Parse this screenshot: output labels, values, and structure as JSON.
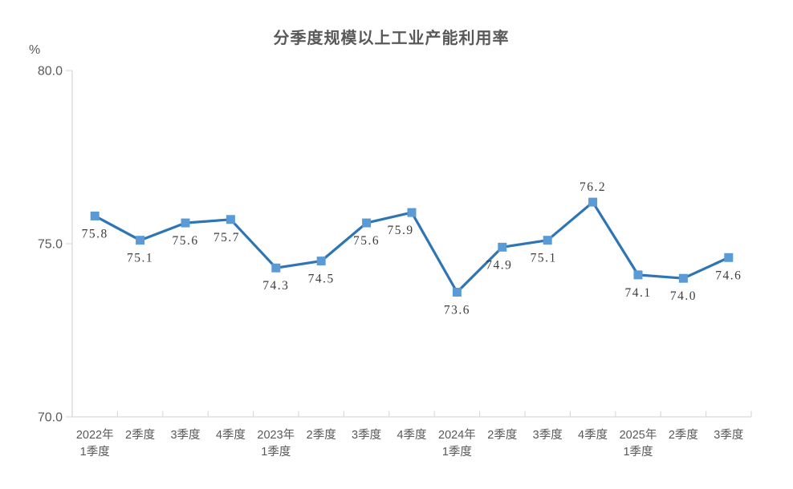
{
  "chart_data": {
    "type": "line",
    "title": "分季度规模以上工业产能利用率",
    "ylabel": "%",
    "categories": [
      [
        "2022年",
        "1季度"
      ],
      [
        "2季度"
      ],
      [
        "3季度"
      ],
      [
        "4季度"
      ],
      [
        "2023年",
        "1季度"
      ],
      [
        "2季度"
      ],
      [
        "3季度"
      ],
      [
        "4季度"
      ],
      [
        "2024年",
        "1季度"
      ],
      [
        "2季度"
      ],
      [
        "3季度"
      ],
      [
        "4季度"
      ],
      [
        "2025年",
        "1季度"
      ],
      [
        "2季度"
      ],
      [
        "3季度"
      ]
    ],
    "values": [
      75.8,
      75.1,
      75.6,
      75.7,
      74.3,
      74.5,
      75.6,
      75.9,
      73.6,
      74.9,
      75.1,
      76.2,
      74.1,
      74.0,
      74.6
    ],
    "value_labels": [
      "75.8",
      "75.1",
      "75.6",
      "75.7",
      "74.3",
      "74.5",
      "75.6",
      "75.9",
      "73.6",
      "74.9",
      "75.1",
      "76.2",
      "74.1",
      "74.0",
      "74.6"
    ],
    "label_above_indices": [
      11
    ],
    "ylim": [
      70.0,
      80.0
    ],
    "yticks": [
      80.0,
      75.0,
      70.0
    ],
    "ytick_labels": [
      "80.0",
      "75.0",
      "70.0"
    ],
    "grid": false,
    "legend": "none",
    "colors": {
      "line": "#2e75b6",
      "marker": "#5b9bd5",
      "axis": "#d9d9d9",
      "axis_text": "#595959",
      "title_text": "#595959",
      "value_text": "#3d3d3d",
      "background": "#ffffff"
    }
  }
}
